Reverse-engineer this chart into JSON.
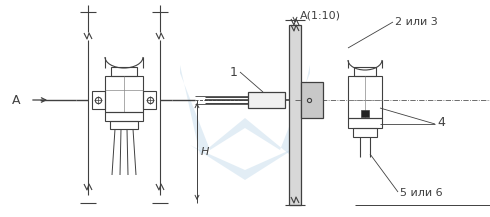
{
  "bg_color": "#ffffff",
  "lc": "#404040",
  "wc": "#c0d8ea",
  "fig_w": 4.9,
  "fig_h": 2.17,
  "dpi": 100,
  "label_A": "A",
  "label_A110": "A(1:10)",
  "label_1": "1",
  "label_23": "2 или 3",
  "label_4": "4",
  "label_56": "5 или 6",
  "label_H": "H"
}
